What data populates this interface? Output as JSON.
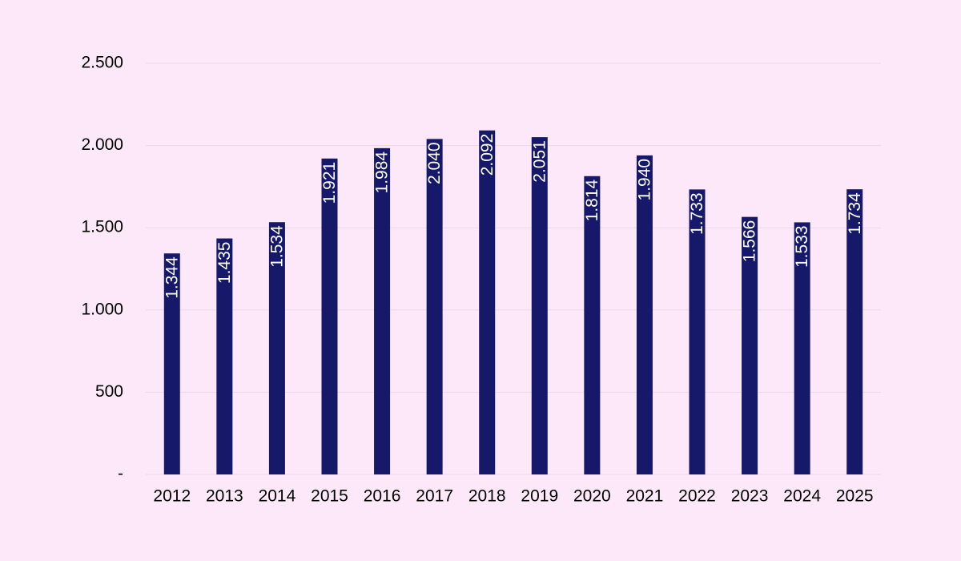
{
  "chart_data": {
    "type": "bar",
    "categories": [
      "2012",
      "2013",
      "2014",
      "2015",
      "2016",
      "2017",
      "2018",
      "2019",
      "2020",
      "2021",
      "2022",
      "2023",
      "2024",
      "2025"
    ],
    "values": [
      1344,
      1435,
      1534,
      1921,
      1984,
      2040,
      2092,
      2051,
      1814,
      1940,
      1733,
      1566,
      1533,
      1734
    ],
    "value_labels": [
      "1.344",
      "1.435",
      "1.534",
      "1.921",
      "1.984",
      "2.040",
      "2.092",
      "2.051",
      "1.814",
      "1.940",
      "1.733",
      "1.566",
      "1.533",
      "1.734"
    ],
    "color": "#16186a",
    "ylim": [
      0,
      2500
    ],
    "yticks": [
      {
        "value": 0,
        "label": "-"
      },
      500,
      {
        "value": 1000,
        "label": "1.000"
      },
      {
        "value": 1500,
        "label": "1.500"
      },
      {
        "value": 2000,
        "label": "2.000"
      },
      {
        "value": 2500,
        "label": "2.500"
      }
    ],
    "grid": true
  }
}
